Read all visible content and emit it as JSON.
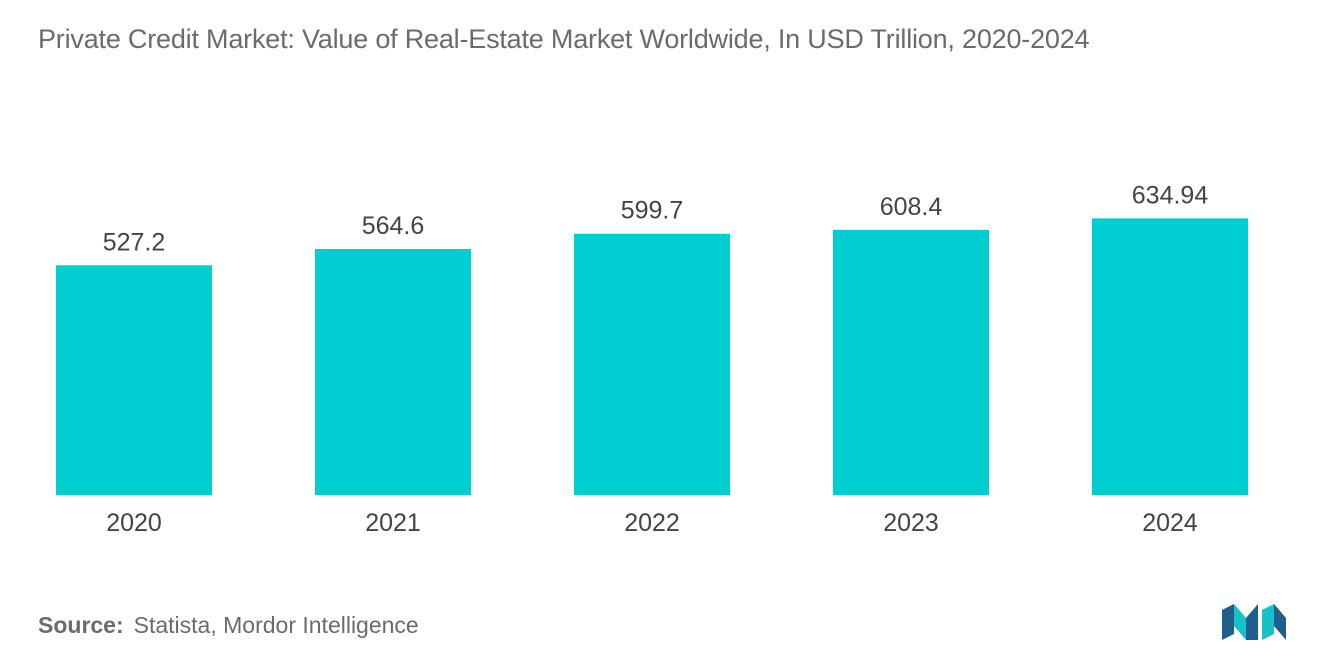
{
  "chart_data": {
    "type": "bar",
    "title": "Private Credit Market: Value of Real-Estate Market Worldwide, In USD Trillion, 2020-2024",
    "categories": [
      "2020",
      "2021",
      "2022",
      "2023",
      "2024"
    ],
    "values": [
      527.2,
      564.6,
      599.7,
      608.4,
      634.94
    ],
    "value_labels": [
      "527.2",
      "564.6",
      "599.7",
      "608.4",
      "634.94"
    ],
    "xlabel": "",
    "ylabel": "",
    "bar_color": "#00CED1",
    "grid": false,
    "legend": "none"
  },
  "source": {
    "label": "Source:",
    "text": "Statista, Mordor Intelligence"
  },
  "colors": {
    "title": "#6b6b6b",
    "bar": "#00CED1",
    "axis_text": "#444444",
    "logo_dark": "#1f5f8b",
    "logo_light": "#16c1c8"
  },
  "logo": {
    "icon": "mordor-intelligence-logo-icon"
  }
}
